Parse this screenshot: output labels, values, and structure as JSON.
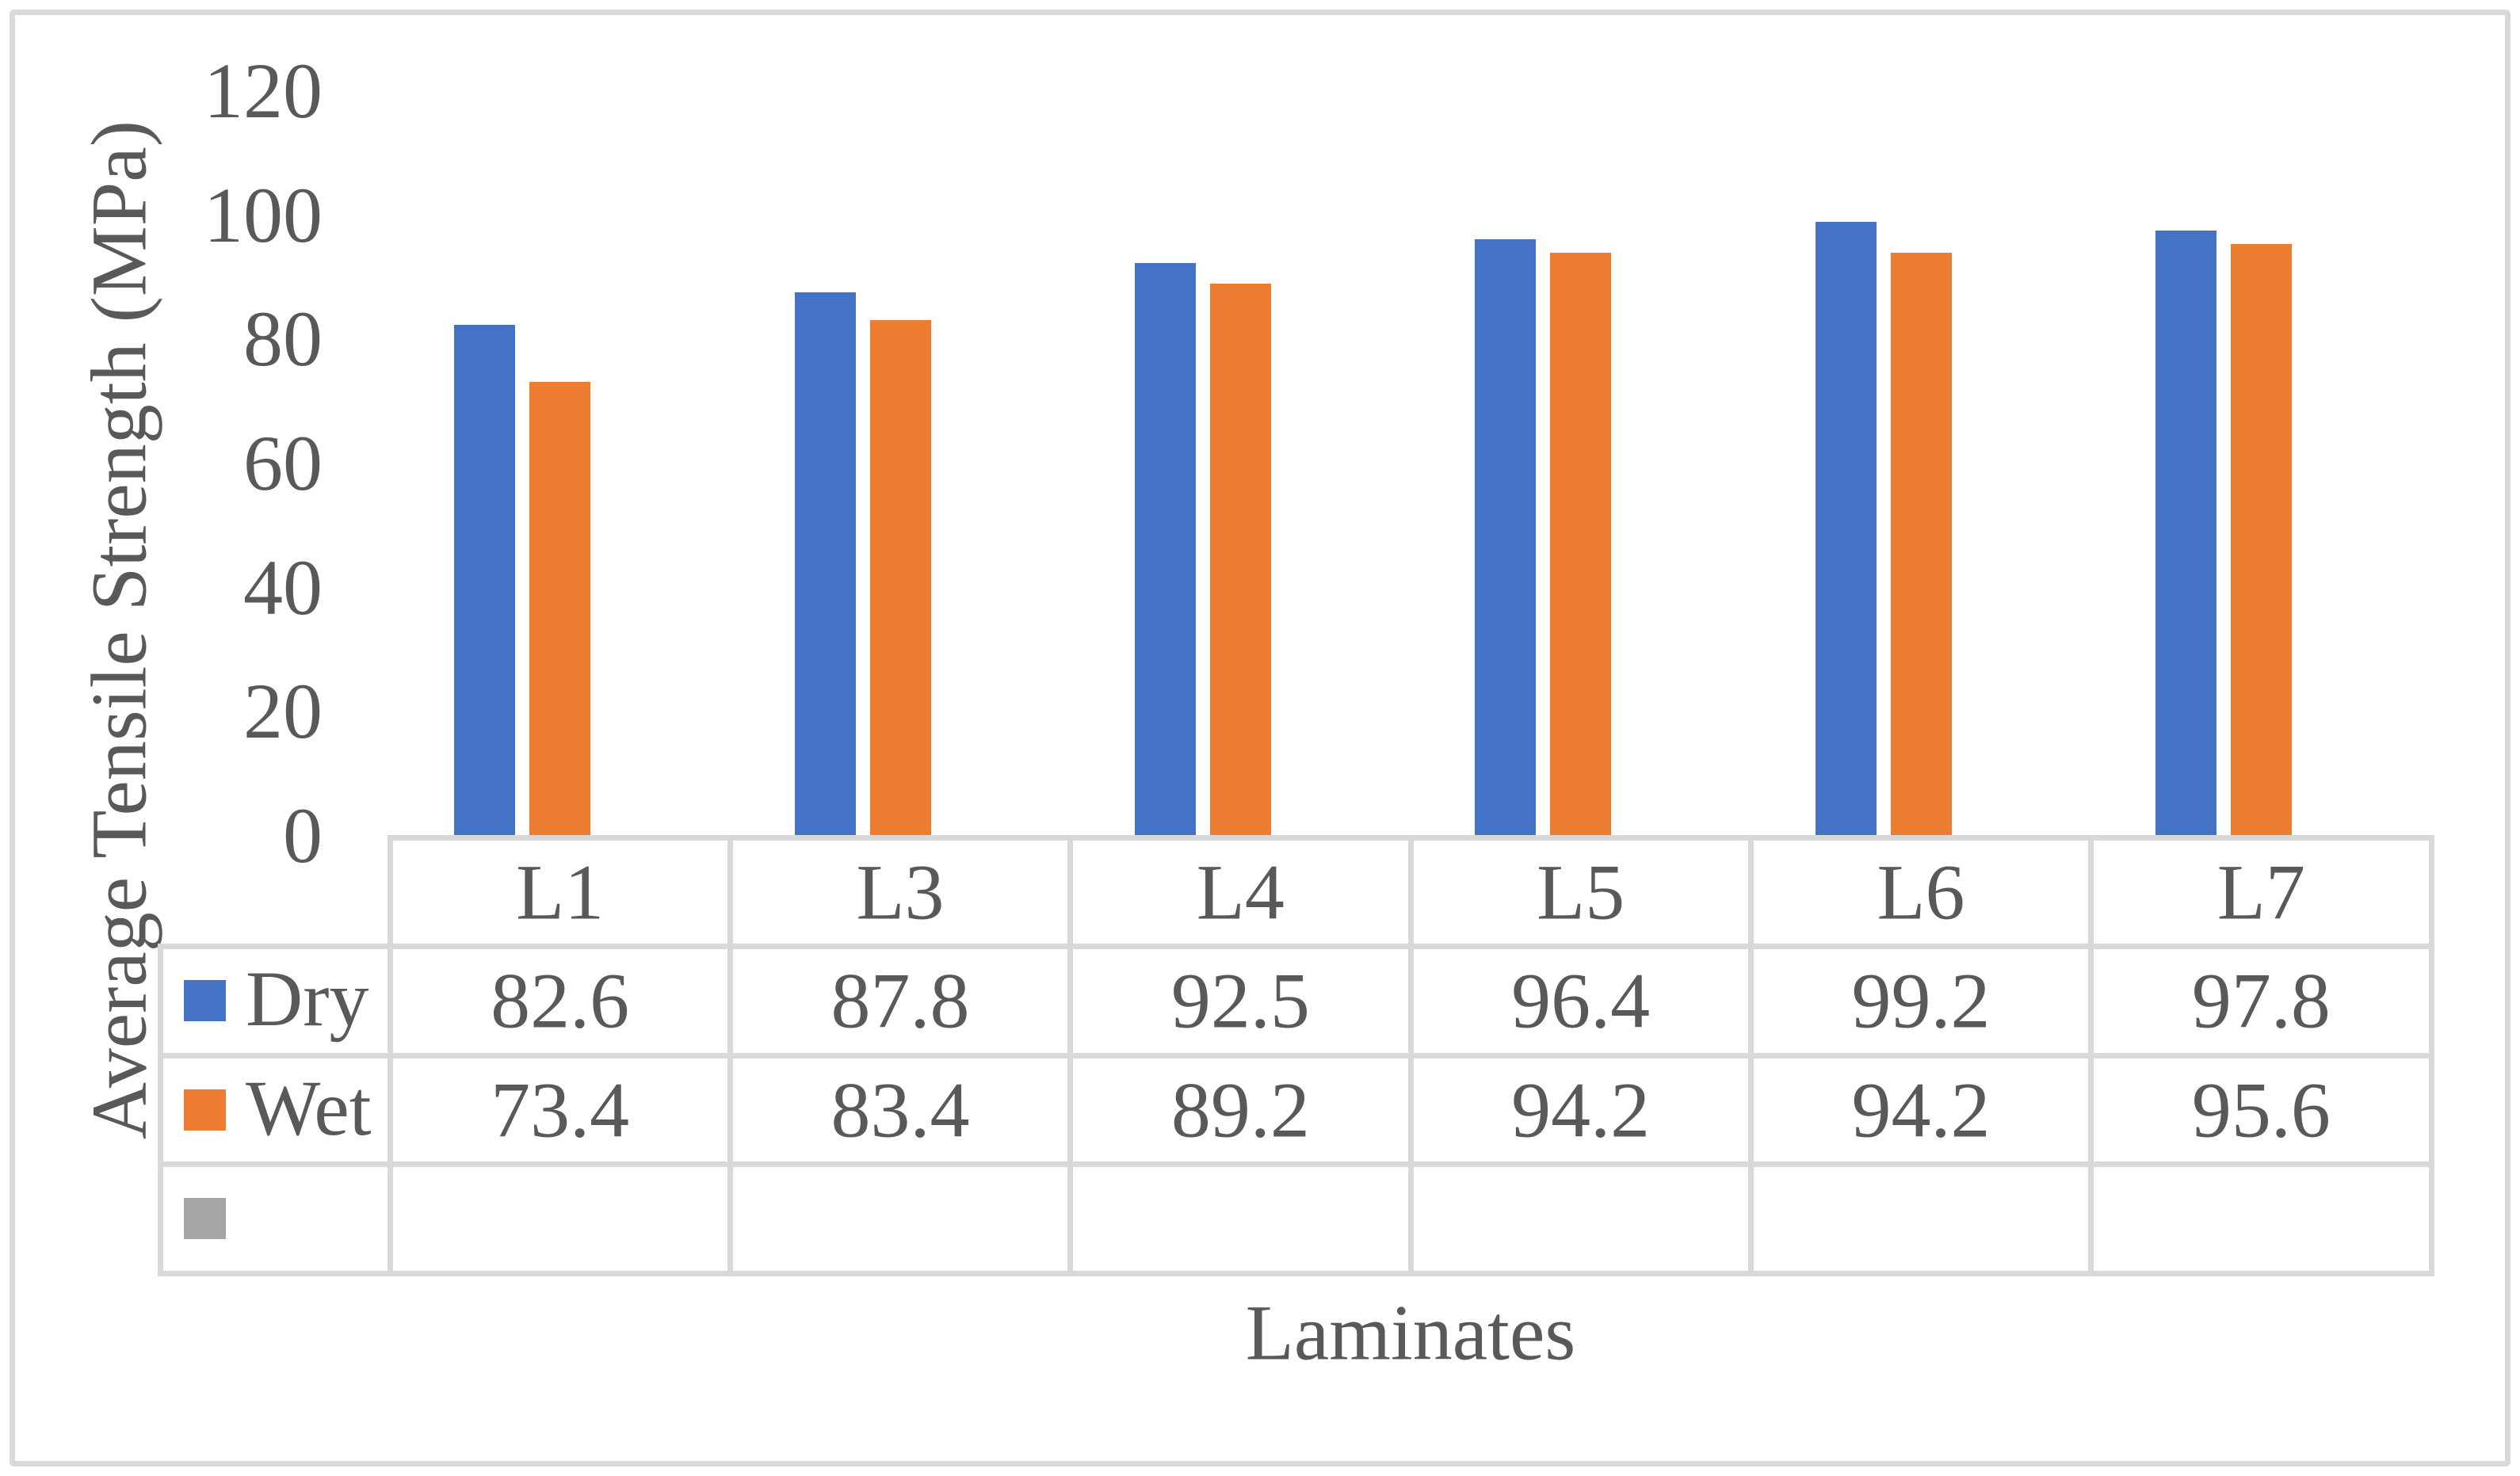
{
  "figure": {
    "background": "#FFFFFF",
    "border_color": "#D9D9D9",
    "text_color": "#595959",
    "gridline_color": "#D9D9D9"
  },
  "chart_data": {
    "type": "bar",
    "title": "",
    "xlabel": "Laminates",
    "ylabel": "Average Tensile Strength (MPa)",
    "categories": [
      "L1",
      "L3",
      "L4",
      "L5",
      "L6",
      "L7"
    ],
    "series": [
      {
        "name": "Dry",
        "color": "#4472C4",
        "values": [
          82.6,
          87.8,
          92.5,
          96.4,
          99.2,
          97.8
        ]
      },
      {
        "name": "Wet",
        "color": "#ED7D31",
        "values": [
          73.4,
          83.4,
          89.2,
          94.2,
          94.2,
          95.6
        ]
      },
      {
        "name": "",
        "color": "#A6A6A6",
        "values": []
      }
    ],
    "ylim": [
      0,
      120
    ],
    "y_ticks": [
      0,
      20,
      40,
      60,
      80,
      100,
      120
    ],
    "grid": false,
    "axis_line": false,
    "legend_position": "data-table-left",
    "data_table": true
  }
}
